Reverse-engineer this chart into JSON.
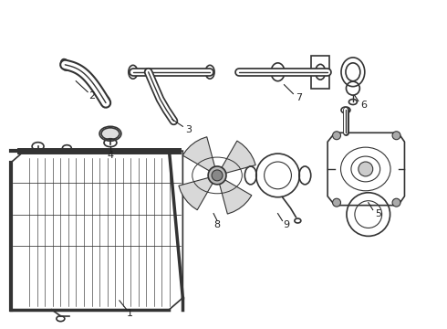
{
  "bg_color": "#ffffff",
  "line_color": "#333333",
  "line_width": 1.2,
  "label_color": "#222222",
  "label_fontsize": 8,
  "figsize": [
    4.9,
    3.6
  ],
  "dpi": 100
}
